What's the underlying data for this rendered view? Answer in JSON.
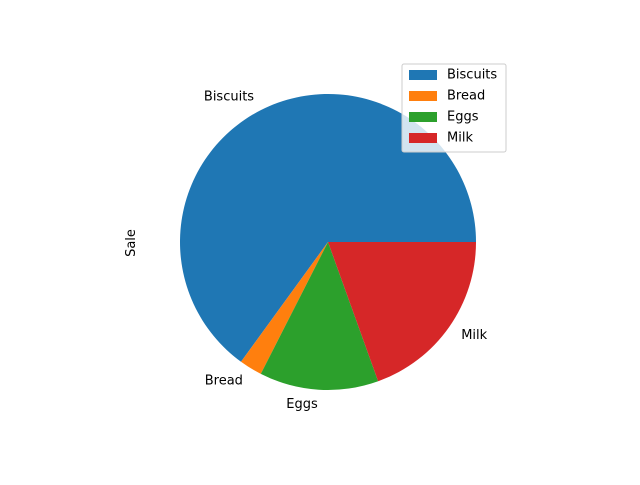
{
  "chart_data": {
    "type": "pie",
    "ylabel": "Sale",
    "categories": [
      "Biscuits",
      "Bread",
      "Eggs",
      "Milk"
    ],
    "values": [
      65,
      2.5,
      13,
      19.5
    ],
    "colors": [
      "#1f77b4",
      "#ff7f0e",
      "#2ca02c",
      "#d62728"
    ],
    "start_angle_deg": 0,
    "direction": "counterclockwise",
    "legend": {
      "placement": "upper-right",
      "entries": [
        "Biscuits",
        "Bread",
        "Eggs",
        "Milk"
      ]
    }
  }
}
